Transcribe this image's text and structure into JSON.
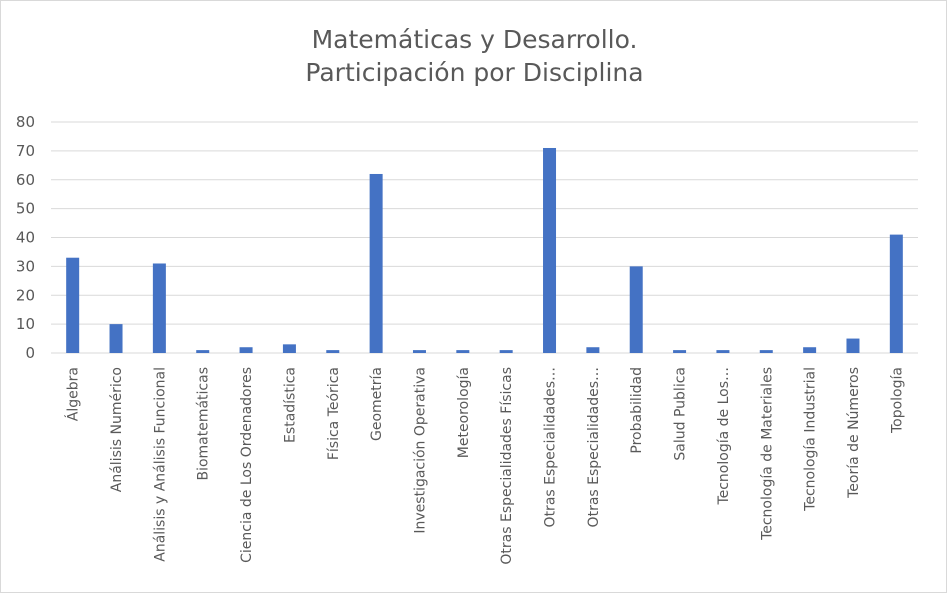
{
  "chart_data": {
    "type": "bar",
    "title": [
      "Matemáticas y Desarrollo.",
      "Participación por Disciplina"
    ],
    "categories": [
      "Álgebra",
      "Análisis Numérico",
      "Análisis y Análisis Funcional",
      "Biomatemáticas",
      "Ciencia de Los Ordenadores",
      "Estadística",
      "Física Teórica",
      "Geometría",
      "Investigación Operativa",
      "Meteorología",
      "Otras Especialidades Físicas",
      "Otras Especialidades…",
      "Otras Especialidades…",
      "Probabilidad",
      "Salud Publica",
      "Tecnología de Los…",
      "Tecnología de Materiales",
      "Tecnología Industrial",
      "Teoría de Números",
      "Topología"
    ],
    "values": [
      33,
      10,
      31,
      1,
      2,
      3,
      1,
      62,
      1,
      1,
      1,
      71,
      2,
      30,
      1,
      1,
      1,
      2,
      5,
      41
    ],
    "ylim": [
      0,
      80
    ],
    "yticks": [
      "0",
      "10",
      "20",
      "30",
      "40",
      "50",
      "60",
      "70",
      "80"
    ],
    "xlabel": "",
    "ylabel": "",
    "grid": true,
    "legend": "none",
    "colors": {
      "bar": "#4472c4",
      "grid": "#d9d9d9",
      "text": "#595959"
    }
  }
}
